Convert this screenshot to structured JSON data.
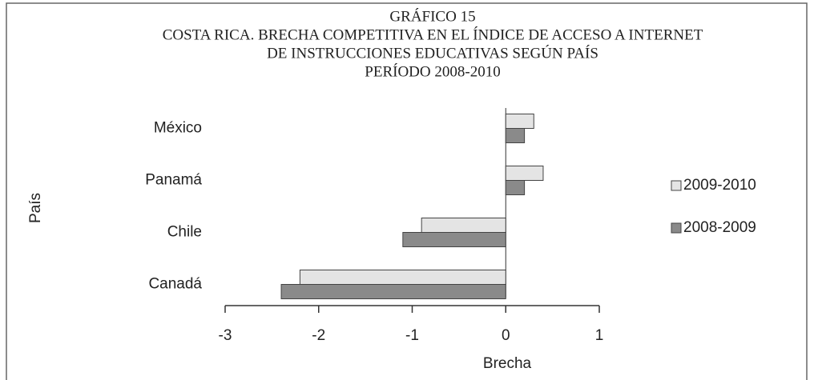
{
  "chart_data": {
    "type": "hbar",
    "title": [
      "GRÁFICO 15",
      "COSTA RICA. BRECHA COMPETITIVA EN EL ÍNDICE DE ACCESO A INTERNET",
      "DE INSTRUCCIONES EDUCATIVAS SEGÚN PAÍS",
      "PERÍODO 2008-2010"
    ],
    "x_label": "Brecha",
    "y_label": "País",
    "categories": [
      "México",
      "Panamá",
      "Chile",
      "Canadá"
    ],
    "series": [
      {
        "name": "2009-2010",
        "color": "#e4e4e4",
        "values": [
          0.3,
          0.4,
          -0.9,
          -2.2
        ]
      },
      {
        "name": "2008-2009",
        "color": "#8a8a8a",
        "values": [
          0.2,
          0.2,
          -1.1,
          -2.4
        ]
      }
    ],
    "xlim": [
      -3,
      1
    ],
    "xticks": [
      -3,
      -2,
      -1,
      0,
      1
    ],
    "legend": "right"
  }
}
